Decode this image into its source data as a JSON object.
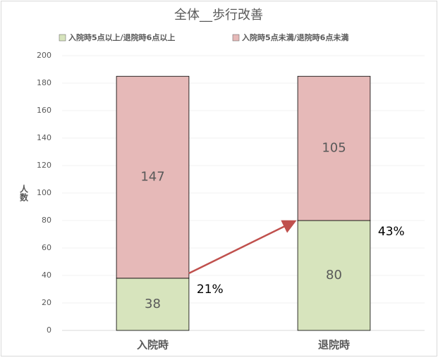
{
  "chart_data": {
    "type": "stacked_bar",
    "title": "全体__歩行改善",
    "categories": [
      "入院時",
      "退院時"
    ],
    "series": [
      {
        "name": "入院時5点以上/退院時6点以上",
        "color": "#d7e4bd",
        "values": [
          38,
          80
        ]
      },
      {
        "name": "入院時5点未満/退院時6点未満",
        "color": "#e6b9b8",
        "values": [
          147,
          105
        ]
      }
    ],
    "y_label": "人数",
    "annotations": [
      "21%",
      "43%"
    ],
    "ylim": [
      0,
      200
    ],
    "yticks": [
      0,
      20,
      40,
      60,
      80,
      100,
      120,
      140,
      160,
      180,
      200
    ],
    "grid": true,
    "legend": "top"
  }
}
